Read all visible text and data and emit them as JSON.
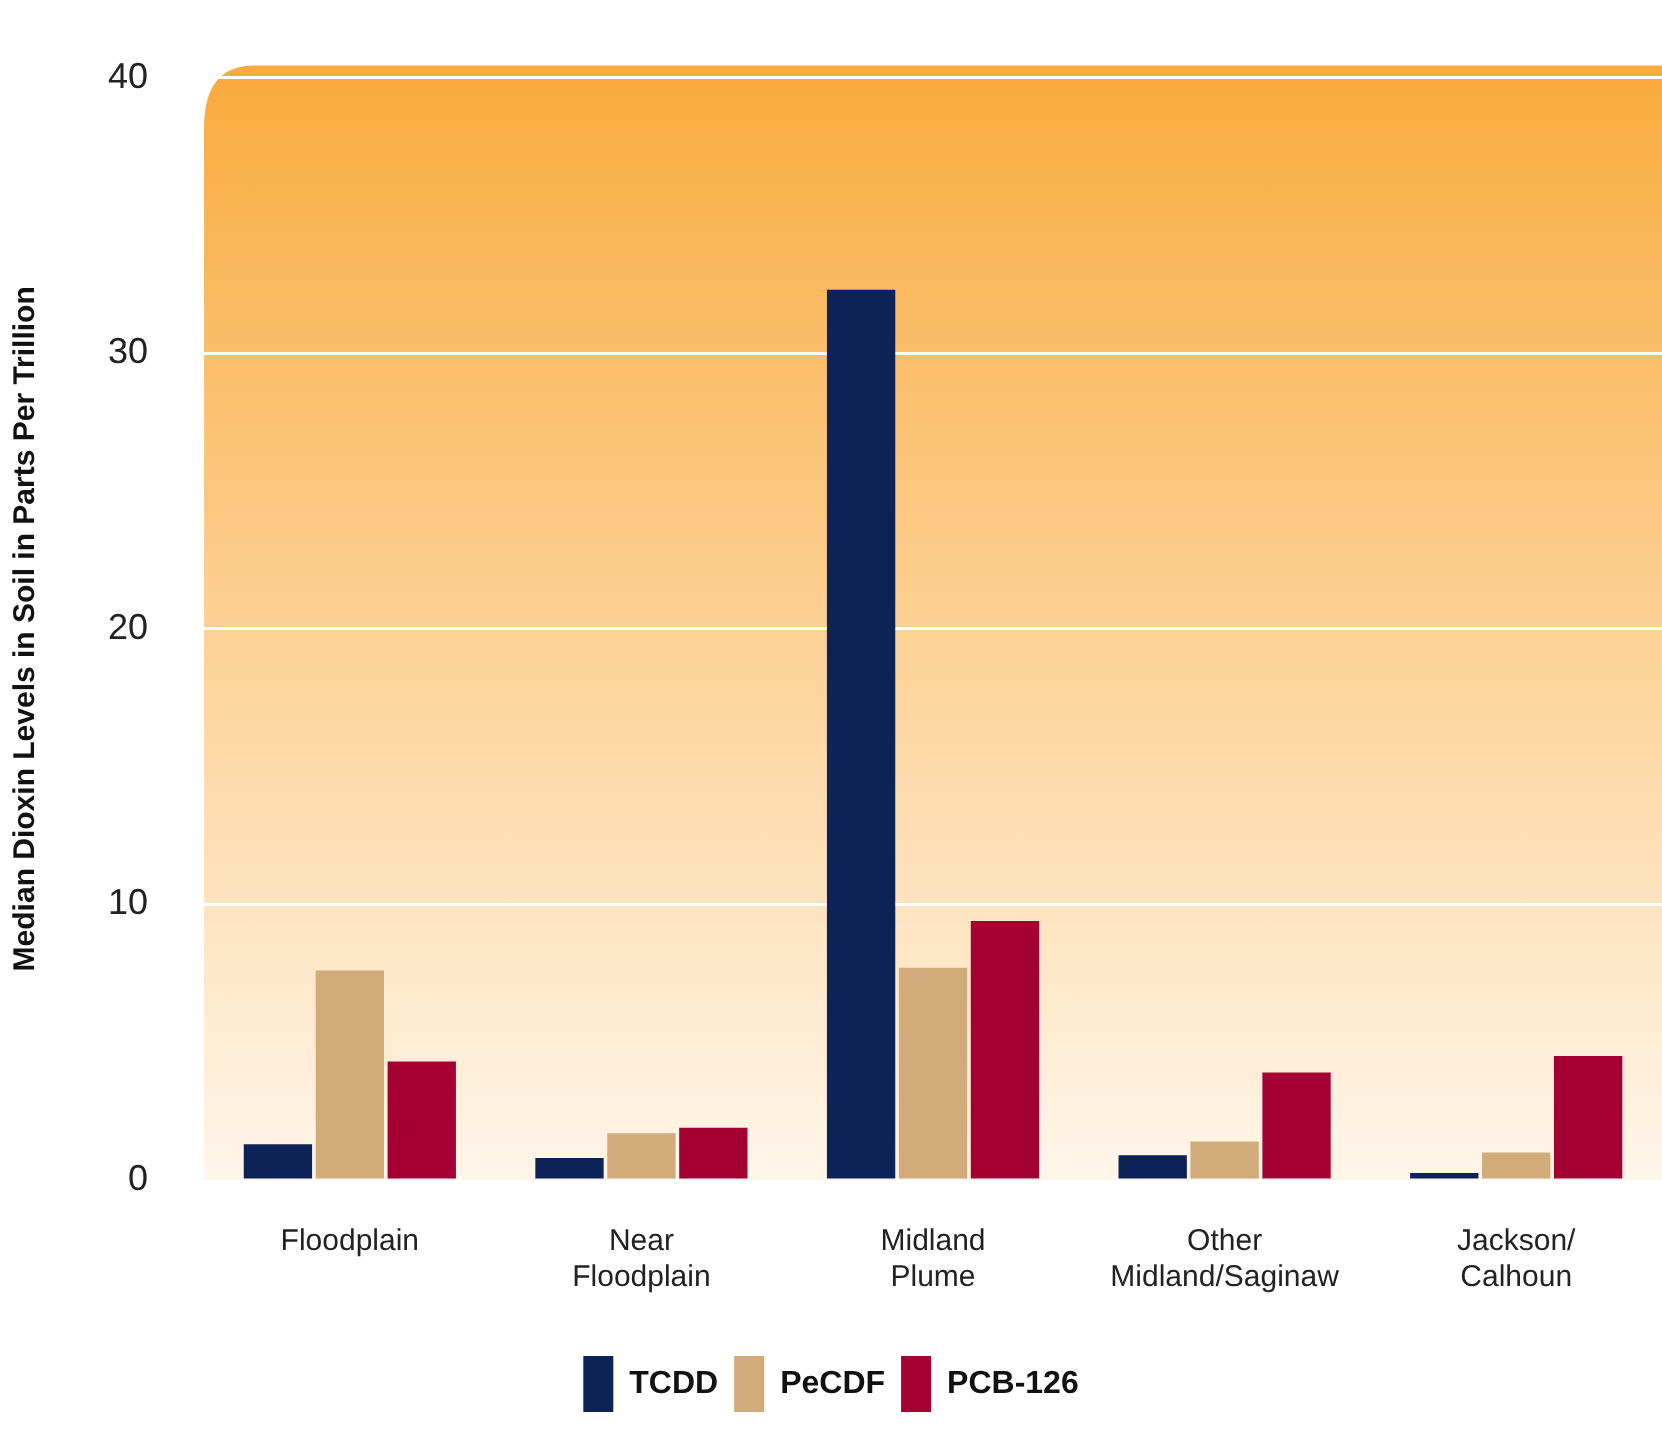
{
  "chart_data": {
    "type": "bar",
    "ylabel": "Median Dioxin Levels in Soil in Parts Per Trillion",
    "categories": [
      "Floodplain",
      "Near\nFloodplain",
      "Midland\nPlume",
      "Other\nMidland/Saginaw",
      "Jackson/\nCalhoun"
    ],
    "series": [
      {
        "name": "TCDD",
        "color": "#0d2357",
        "values": [
          1.3,
          0.8,
          32.3,
          0.9,
          0.25
        ]
      },
      {
        "name": "PeCDF",
        "color": "#d2ab7a",
        "values": [
          7.6,
          1.7,
          7.7,
          1.4,
          1.0
        ]
      },
      {
        "name": "PCB-126",
        "color": "#a50034",
        "values": [
          4.3,
          1.9,
          9.4,
          3.9,
          4.5
        ]
      }
    ],
    "ylim": [
      0,
      40
    ],
    "yticks": [
      0,
      10,
      20,
      30,
      40
    ],
    "grid": "y",
    "legend": "bottom"
  }
}
